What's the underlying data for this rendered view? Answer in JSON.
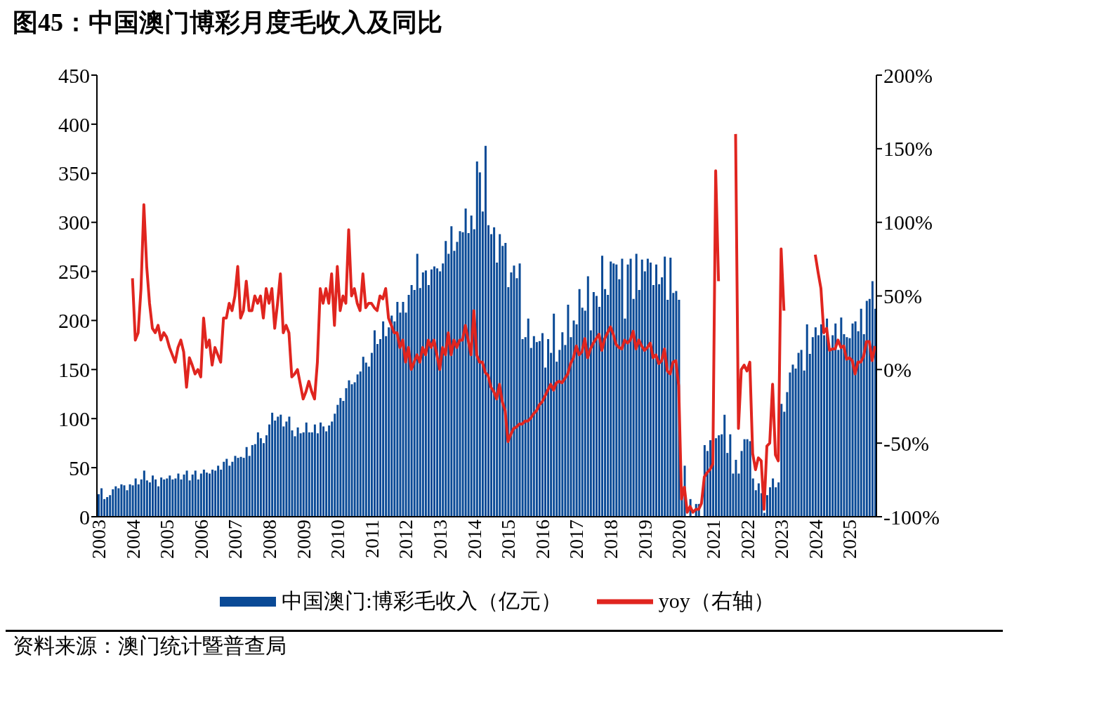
{
  "chart_data": {
    "type": "bar",
    "title": "图45：中国澳门博彩月度毛收入及同比",
    "categories": [
      "2003",
      null,
      null,
      null,
      null,
      null,
      null,
      null,
      null,
      null,
      null,
      null,
      "2004",
      null,
      null,
      null,
      null,
      null,
      null,
      null,
      null,
      null,
      null,
      null,
      "2005",
      null,
      null,
      null,
      null,
      null,
      null,
      null,
      null,
      null,
      null,
      null,
      "2006",
      null,
      null,
      null,
      null,
      null,
      null,
      null,
      null,
      null,
      null,
      null,
      "2007",
      null,
      null,
      null,
      null,
      null,
      null,
      null,
      null,
      null,
      null,
      null,
      "2008",
      null,
      null,
      null,
      null,
      null,
      null,
      null,
      null,
      null,
      null,
      null,
      "2009",
      null,
      null,
      null,
      null,
      null,
      null,
      null,
      null,
      null,
      null,
      null,
      "2010",
      null,
      null,
      null,
      null,
      null,
      null,
      null,
      null,
      null,
      null,
      null,
      "2011",
      null,
      null,
      null,
      null,
      null,
      null,
      null,
      null,
      null,
      null,
      null,
      "2012",
      null,
      null,
      null,
      null,
      null,
      null,
      null,
      null,
      null,
      null,
      null,
      "2013",
      null,
      null,
      null,
      null,
      null,
      null,
      null,
      null,
      null,
      null,
      null,
      "2014",
      null,
      null,
      null,
      null,
      null,
      null,
      null,
      null,
      null,
      null,
      null,
      "2015",
      null,
      null,
      null,
      null,
      null,
      null,
      null,
      null,
      null,
      null,
      null,
      "2016",
      null,
      null,
      null,
      null,
      null,
      null,
      null,
      null,
      null,
      null,
      null,
      "2017",
      null,
      null,
      null,
      null,
      null,
      null,
      null,
      null,
      null,
      null,
      null,
      "2018",
      null,
      null,
      null,
      null,
      null,
      null,
      null,
      null,
      null,
      null,
      null,
      "2019",
      null,
      null,
      null,
      null,
      null,
      null,
      null,
      null,
      null,
      null,
      null,
      "2020",
      null,
      null,
      null,
      null,
      null,
      null,
      null,
      null,
      null,
      null,
      null,
      "2021",
      null,
      null,
      null,
      null,
      null,
      null,
      null,
      null,
      null,
      null,
      null,
      "2022",
      null,
      null,
      null,
      null,
      null,
      null,
      null,
      null,
      null,
      null,
      null,
      "2023",
      null,
      null,
      null,
      null,
      null,
      null,
      null,
      null,
      null,
      null,
      null,
      "2024",
      null,
      null,
      null,
      null,
      null,
      null,
      null,
      null,
      null,
      null,
      null,
      "2025",
      null,
      null,
      null,
      null,
      null,
      null,
      null,
      null,
      null
    ],
    "series": [
      {
        "name": "中国澳门:博彩毛收入（亿元）",
        "color": "#0a4a96",
        "values": [
          23,
          29,
          18,
          20,
          22,
          28,
          31,
          29,
          33,
          32,
          27,
          33,
          32,
          39,
          33,
          38,
          47,
          37,
          35,
          42,
          38,
          31,
          40,
          38,
          39,
          42,
          38,
          39,
          44,
          38,
          43,
          47,
          37,
          43,
          47,
          38,
          44,
          48,
          45,
          44,
          48,
          47,
          52,
          48,
          56,
          59,
          52,
          56,
          62,
          60,
          61,
          60,
          71,
          62,
          73,
          74,
          86,
          80,
          75,
          83,
          94,
          106,
          98,
          102,
          104,
          92,
          97,
          102,
          88,
          82,
          91,
          85,
          86,
          96,
          86,
          86,
          94,
          85,
          96,
          92,
          87,
          93,
          97,
          105,
          114,
          121,
          118,
          131,
          139,
          135,
          137,
          145,
          148,
          163,
          157,
          153,
          167,
          190,
          176,
          181,
          199,
          184,
          193,
          205,
          199,
          219,
          208,
          219,
          208,
          226,
          236,
          231,
          268,
          233,
          249,
          251,
          236,
          252,
          255,
          253,
          250,
          258,
          281,
          268,
          296,
          271,
          280,
          291,
          290,
          314,
          289,
          307,
          293,
          362,
          351,
          311,
          378,
          297,
          288,
          295,
          259,
          288,
          276,
          279,
          234,
          249,
          256,
          243,
          258,
          181,
          183,
          202,
          172,
          184,
          178,
          179,
          187,
          152,
          181,
          167,
          207,
          158,
          170,
          188,
          175,
          216,
          183,
          200,
          196,
          232,
          213,
          210,
          245,
          190,
          229,
          225,
          214,
          266,
          232,
          226,
          260,
          258,
          257,
          242,
          263,
          202,
          257,
          263,
          222,
          268,
          231,
          262,
          250,
          263,
          259,
          236,
          257,
          237,
          244,
          265,
          221,
          264,
          228,
          230,
          221,
          31,
          52,
          null,
          18,
          null,
          13,
          13,
          null,
          73,
          67,
          78,
          80,
          80,
          83,
          84,
          104,
          65,
          84,
          44,
          58,
          44,
          67,
          79,
          79,
          77,
          39,
          27,
          34,
          24,
          4,
          22,
          30,
          39,
          30,
          35,
          115,
          107,
          127,
          147,
          155,
          151,
          167,
          170,
          149,
          196,
          166,
          183,
          193,
          185,
          196,
          185,
          202,
          170,
          185,
          197,
          170,
          203,
          186,
          183,
          182,
          197,
          199,
          189,
          212,
          186,
          220,
          222,
          240,
          212
        ]
      },
      {
        "name": "yoy（右轴）",
        "type": "line",
        "axis": "y2",
        "color": "#e0251f",
        "values": [
          null,
          null,
          null,
          null,
          null,
          null,
          null,
          null,
          null,
          null,
          null,
          null,
          62,
          20,
          25,
          55,
          112,
          70,
          45,
          28,
          25,
          30,
          20,
          25,
          22,
          15,
          10,
          5,
          15,
          20,
          12,
          -12,
          8,
          3,
          -3,
          0,
          -5,
          35,
          15,
          20,
          3,
          15,
          10,
          5,
          35,
          35,
          45,
          40,
          50,
          70,
          35,
          40,
          60,
          40,
          40,
          50,
          45,
          50,
          35,
          55,
          45,
          55,
          28,
          45,
          65,
          25,
          30,
          25,
          -5,
          -3,
          0,
          -10,
          -20,
          -15,
          -8,
          -15,
          -20,
          5,
          55,
          45,
          55,
          45,
          65,
          30,
          70,
          40,
          50,
          45,
          95,
          50,
          55,
          45,
          40,
          65,
          42,
          45,
          45,
          42,
          40,
          50,
          48,
          55,
          35,
          30,
          25,
          25,
          15,
          20,
          5,
          15,
          0,
          5,
          10,
          5,
          15,
          10,
          20,
          15,
          20,
          10,
          0,
          15,
          10,
          25,
          10,
          20,
          15,
          20,
          20,
          30,
          20,
          10,
          40,
          10,
          5,
          5,
          -2,
          -4,
          -12,
          -15,
          -20,
          -10,
          -22,
          -28,
          -49,
          -44,
          -40,
          -39,
          -37,
          -37,
          -35,
          -35,
          -33,
          -30,
          -28,
          -24,
          -22,
          -18,
          -14,
          -10,
          -14,
          -9,
          -8,
          -9,
          -6,
          -3,
          4,
          8,
          16,
          10,
          12,
          21,
          8,
          14,
          18,
          21,
          24,
          13,
          21,
          25,
          29,
          24,
          17,
          15,
          14,
          20,
          18,
          20,
          26,
          14,
          20,
          16,
          13,
          15,
          18,
          8,
          10,
          4,
          6,
          14,
          -1,
          -3,
          5,
          6,
          -11,
          -88,
          -80,
          -97,
          -93,
          -97,
          -95,
          -95,
          -91,
          -73,
          -70,
          -68,
          -64,
          135,
          60,
          null,
          null,
          null,
          null,
          null,
          160,
          -40,
          0,
          3,
          -1,
          5,
          -57,
          -68,
          -60,
          -62,
          -95,
          -52,
          -50,
          -10,
          -58,
          -62,
          82,
          40,
          null,
          null,
          null,
          null,
          null,
          null,
          null,
          null,
          null,
          null,
          78,
          66,
          55,
          25,
          28,
          13,
          14,
          14,
          20,
          15,
          16,
          7,
          8,
          6,
          -3,
          5,
          5,
          9,
          19,
          19,
          6,
          16
        ]
      }
    ],
    "ylim": [
      0,
      450
    ],
    "yticks": [
      0,
      50,
      100,
      150,
      200,
      250,
      300,
      350,
      400,
      450
    ],
    "y2lim": [
      -100,
      200
    ],
    "y2ticks": [
      {
        "value": -100,
        "label": "-100%"
      },
      {
        "value": -50,
        "label": "-50%"
      },
      {
        "value": 0,
        "label": "0%"
      },
      {
        "value": 50,
        "label": "50%"
      },
      {
        "value": 100,
        "label": "100%"
      },
      {
        "value": 150,
        "label": "150%"
      },
      {
        "value": 200,
        "label": "200%"
      }
    ],
    "legend": "bottom",
    "annotations": [
      "资料来源：澳门统计暨普查局"
    ]
  }
}
